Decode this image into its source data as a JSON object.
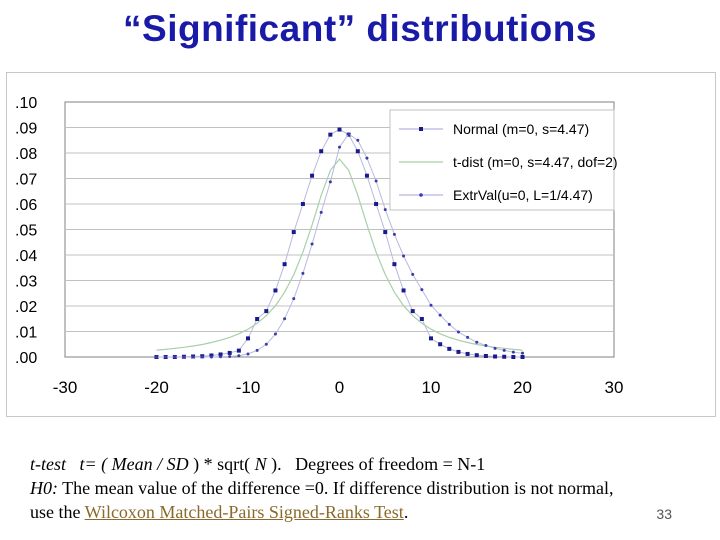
{
  "slide": {
    "title": "“Significant” distributions",
    "page_number": "33"
  },
  "body": {
    "line1": {
      "label": "t-test",
      "formula_prefix": "t= ( ",
      "mean": "Mean",
      "slash": " / ",
      "sd": "SD",
      "formula_mid": " ) * sqrt( ",
      "n": "N",
      "formula_end": " ).",
      "dof": "Degrees of freedom = N-1"
    },
    "line2": {
      "h0_label": "H0:",
      "text": " The mean value of the difference =0. If difference distribution is not normal,"
    },
    "line3": {
      "prefix": "use the ",
      "link": "Wilcoxon Matched-Pairs Signed-Ranks Test",
      "suffix": "."
    }
  },
  "chart_data": {
    "type": "line",
    "title": "",
    "xlabel": "",
    "ylabel": "",
    "xlim": [
      -30,
      30
    ],
    "ylim": [
      0,
      0.1
    ],
    "x_ticks": [
      -30,
      -20,
      -10,
      0,
      10,
      20,
      30
    ],
    "x_tick_labels": [
      "-30",
      "-20",
      "-10",
      "0",
      "10",
      "20",
      "30"
    ],
    "y_ticks": [
      0,
      0.01,
      0.02,
      0.03,
      0.04,
      0.05,
      0.06,
      0.07,
      0.08,
      0.09,
      0.1
    ],
    "y_tick_labels": [
      ".00",
      ".01",
      ".02",
      ".03",
      ".04",
      ".05",
      ".06",
      ".07",
      ".08",
      ".09",
      ".10"
    ],
    "grid": "horizontal",
    "legend_position": "top-right",
    "x": [
      -20,
      -19,
      -18,
      -17,
      -16,
      -15,
      -14,
      -13,
      -12,
      -11,
      -10,
      -9,
      -8,
      -7,
      -6,
      -5,
      -4,
      -3,
      -2,
      -1,
      0,
      1,
      2,
      3,
      4,
      5,
      6,
      7,
      8,
      9,
      10,
      11,
      12,
      13,
      14,
      15,
      16,
      17,
      18,
      19,
      20
    ],
    "series": [
      {
        "name": "Normal (m=0, s=4.47)",
        "color": "#1a1a8c",
        "marker": "square",
        "values": [
          0.0,
          0.0,
          0.0,
          0.0001,
          0.0002,
          0.0003,
          0.0006,
          0.001,
          0.0016,
          0.0025,
          0.0073,
          0.0149,
          0.018,
          0.0261,
          0.0364,
          0.049,
          0.06,
          0.0711,
          0.0807,
          0.0872,
          0.0892,
          0.0872,
          0.0807,
          0.0711,
          0.06,
          0.049,
          0.0364,
          0.0261,
          0.018,
          0.0149,
          0.0073,
          0.005,
          0.0032,
          0.002,
          0.0012,
          0.0007,
          0.0004,
          0.0002,
          0.0001,
          0.0,
          0.0
        ]
      },
      {
        "name": "t-dist (m=0, s=4.47, dof=2)",
        "color": "#a8d0a8",
        "marker": "none",
        "values": [
          0.0027,
          0.003,
          0.0034,
          0.0038,
          0.0043,
          0.0049,
          0.0057,
          0.0066,
          0.0077,
          0.0091,
          0.0109,
          0.0132,
          0.0162,
          0.0201,
          0.0254,
          0.0323,
          0.0411,
          0.0518,
          0.0634,
          0.0732,
          0.0776,
          0.0732,
          0.0634,
          0.0518,
          0.0411,
          0.0323,
          0.0254,
          0.0201,
          0.0162,
          0.0132,
          0.0109,
          0.0091,
          0.0077,
          0.0066,
          0.0057,
          0.0049,
          0.0043,
          0.0038,
          0.0034,
          0.003,
          0.0027
        ]
      },
      {
        "name": "ExtrVal(u=0, L=1/4.47)",
        "color": "#3a3aa8",
        "marker": "dot",
        "values": [
          0.0,
          0.0,
          0.0,
          0.0,
          0.0,
          0.0,
          0.0,
          0.0001,
          0.0002,
          0.0005,
          0.0012,
          0.0026,
          0.005,
          0.009,
          0.015,
          0.0229,
          0.0328,
          0.0443,
          0.0567,
          0.0687,
          0.0823,
          0.0875,
          0.085,
          0.078,
          0.069,
          0.0578,
          0.0481,
          0.0396,
          0.0324,
          0.0264,
          0.0203,
          0.0164,
          0.0128,
          0.0098,
          0.0077,
          0.0058,
          0.0045,
          0.0034,
          0.0026,
          0.0019,
          0.0015
        ]
      }
    ]
  }
}
